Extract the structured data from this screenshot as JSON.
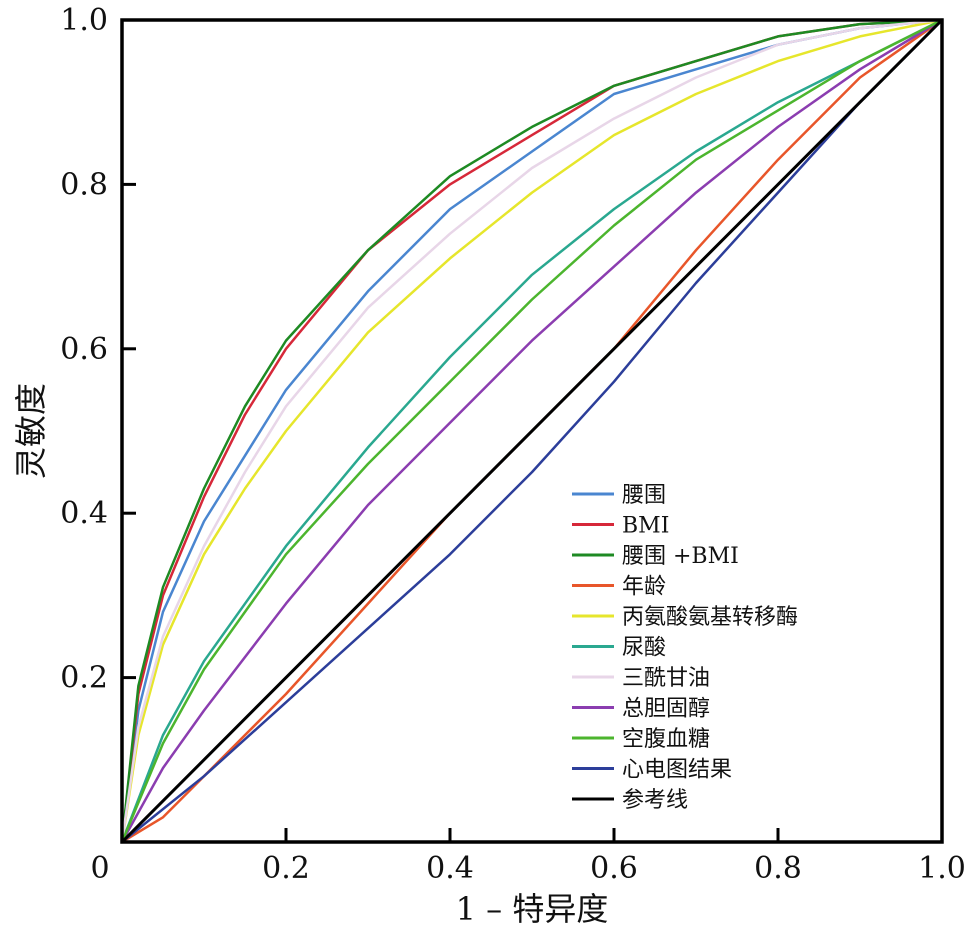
{
  "chart_data": {
    "type": "line",
    "title": "",
    "xlabel": "1 – 特异度",
    "ylabel": "灵敏度",
    "xlim": [
      0,
      1
    ],
    "ylim": [
      0,
      1
    ],
    "x_tick_labels": [
      "0",
      "0.2",
      "0.4",
      "0.6",
      "0.8",
      "1.0"
    ],
    "y_tick_labels": [
      "0.2",
      "0.4",
      "0.6",
      "0.8",
      "1.0"
    ],
    "grid": false,
    "legend_position": "bottom-right",
    "series": [
      {
        "name": "腰围",
        "color": "#4a86d0",
        "x": [
          0,
          0.02,
          0.05,
          0.1,
          0.15,
          0.2,
          0.3,
          0.4,
          0.5,
          0.6,
          0.7,
          0.8,
          0.9,
          1.0
        ],
        "y": [
          0,
          0.16,
          0.28,
          0.39,
          0.47,
          0.55,
          0.67,
          0.77,
          0.84,
          0.91,
          0.94,
          0.97,
          0.99,
          1.0
        ]
      },
      {
        "name": "BMI",
        "color": "#d62839",
        "x": [
          0,
          0.02,
          0.05,
          0.1,
          0.15,
          0.2,
          0.3,
          0.4,
          0.5,
          0.6,
          0.7,
          0.8,
          0.9,
          1.0
        ],
        "y": [
          0,
          0.18,
          0.3,
          0.42,
          0.52,
          0.6,
          0.72,
          0.8,
          0.86,
          0.92,
          0.95,
          0.98,
          0.995,
          1.0
        ]
      },
      {
        "name": "腰围 +BMI",
        "color": "#1e8a23",
        "x": [
          0,
          0.02,
          0.05,
          0.1,
          0.15,
          0.2,
          0.3,
          0.4,
          0.5,
          0.6,
          0.7,
          0.8,
          0.9,
          1.0
        ],
        "y": [
          0,
          0.19,
          0.31,
          0.43,
          0.53,
          0.61,
          0.72,
          0.81,
          0.87,
          0.92,
          0.95,
          0.98,
          0.995,
          1.0
        ]
      },
      {
        "name": "年龄",
        "color": "#e8562a",
        "x": [
          0,
          0.05,
          0.1,
          0.2,
          0.3,
          0.4,
          0.5,
          0.6,
          0.7,
          0.8,
          0.9,
          1.0
        ],
        "y": [
          0,
          0.03,
          0.08,
          0.18,
          0.29,
          0.4,
          0.5,
          0.6,
          0.72,
          0.83,
          0.93,
          1.0
        ]
      },
      {
        "name": "丙氨酸氨基转移酶",
        "color": "#e6e62c",
        "x": [
          0,
          0.02,
          0.05,
          0.1,
          0.15,
          0.2,
          0.3,
          0.4,
          0.5,
          0.6,
          0.7,
          0.8,
          0.9,
          1.0
        ],
        "y": [
          0,
          0.13,
          0.24,
          0.35,
          0.43,
          0.5,
          0.62,
          0.71,
          0.79,
          0.86,
          0.91,
          0.95,
          0.98,
          1.0
        ]
      },
      {
        "name": "尿酸",
        "color": "#2aa890",
        "x": [
          0,
          0.05,
          0.1,
          0.2,
          0.3,
          0.4,
          0.5,
          0.6,
          0.7,
          0.8,
          0.9,
          1.0
        ],
        "y": [
          0,
          0.13,
          0.22,
          0.36,
          0.48,
          0.59,
          0.69,
          0.77,
          0.84,
          0.9,
          0.95,
          1.0
        ]
      },
      {
        "name": "三酰甘油",
        "color": "#e8d6e8",
        "x": [
          0,
          0.02,
          0.05,
          0.1,
          0.15,
          0.2,
          0.3,
          0.4,
          0.5,
          0.6,
          0.7,
          0.8,
          0.9,
          1.0
        ],
        "y": [
          0,
          0.14,
          0.25,
          0.36,
          0.45,
          0.53,
          0.65,
          0.74,
          0.82,
          0.88,
          0.93,
          0.97,
          0.99,
          1.0
        ]
      },
      {
        "name": "总胆固醇",
        "color": "#8b3db0",
        "x": [
          0,
          0.05,
          0.1,
          0.2,
          0.3,
          0.4,
          0.5,
          0.6,
          0.7,
          0.8,
          0.9,
          1.0
        ],
        "y": [
          0,
          0.09,
          0.16,
          0.29,
          0.41,
          0.51,
          0.61,
          0.7,
          0.79,
          0.87,
          0.94,
          1.0
        ]
      },
      {
        "name": "空腹血糖",
        "color": "#4cb52e",
        "x": [
          0,
          0.05,
          0.1,
          0.2,
          0.3,
          0.4,
          0.5,
          0.6,
          0.7,
          0.8,
          0.9,
          1.0
        ],
        "y": [
          0,
          0.12,
          0.21,
          0.35,
          0.46,
          0.56,
          0.66,
          0.75,
          0.83,
          0.89,
          0.95,
          1.0
        ]
      },
      {
        "name": "心电图结果",
        "color": "#2c3e9a",
        "x": [
          0,
          0.1,
          0.2,
          0.3,
          0.4,
          0.5,
          0.6,
          0.7,
          0.8,
          0.9,
          1.0
        ],
        "y": [
          0,
          0.08,
          0.17,
          0.26,
          0.35,
          0.45,
          0.56,
          0.68,
          0.79,
          0.9,
          1.0
        ]
      },
      {
        "name": "参考线",
        "color": "#000000",
        "x": [
          0,
          1.0
        ],
        "y": [
          0,
          1.0
        ]
      }
    ]
  }
}
